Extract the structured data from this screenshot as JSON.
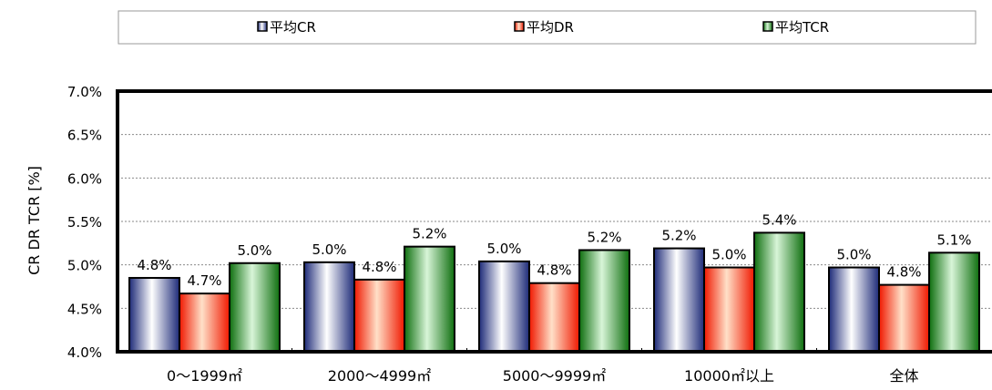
{
  "chart_data": {
    "type": "bar",
    "title": "",
    "xlabel": "",
    "ylabel": "CR DR TCR [%]",
    "categories": [
      "0〜1999㎡",
      "2000〜4999㎡",
      "5000〜9999㎡",
      "10000㎡以上",
      "全体"
    ],
    "series": [
      {
        "name": "平均CR",
        "values": [
          4.85,
          5.03,
          5.04,
          5.19,
          4.97
        ],
        "labels": [
          "4.8%",
          "5.0%",
          "5.0%",
          "5.2%",
          "5.0%"
        ],
        "colors": [
          "#1d2a78",
          "#ffffff"
        ]
      },
      {
        "name": "平均DR",
        "values": [
          4.67,
          4.83,
          4.79,
          4.97,
          4.77
        ],
        "labels": [
          "4.7%",
          "4.8%",
          "4.8%",
          "5.0%",
          "4.8%"
        ],
        "colors": [
          "#f01800",
          "#ffe0c8"
        ]
      },
      {
        "name": "平均TCR",
        "values": [
          5.02,
          5.21,
          5.17,
          5.37,
          5.14
        ],
        "labels": [
          "5.0%",
          "5.2%",
          "5.2%",
          "5.4%",
          "5.1%"
        ],
        "colors": [
          "#0e6e0e",
          "#d8f5d8"
        ]
      }
    ],
    "ylim": [
      4.0,
      7.0
    ],
    "yticks": [
      "4.0%",
      "4.5%",
      "5.0%",
      "5.5%",
      "6.0%",
      "6.5%",
      "7.0%"
    ],
    "ytick_values": [
      4.0,
      4.5,
      5.0,
      5.5,
      6.0,
      6.5,
      7.0
    ],
    "grid": true,
    "legend_position": "top"
  }
}
